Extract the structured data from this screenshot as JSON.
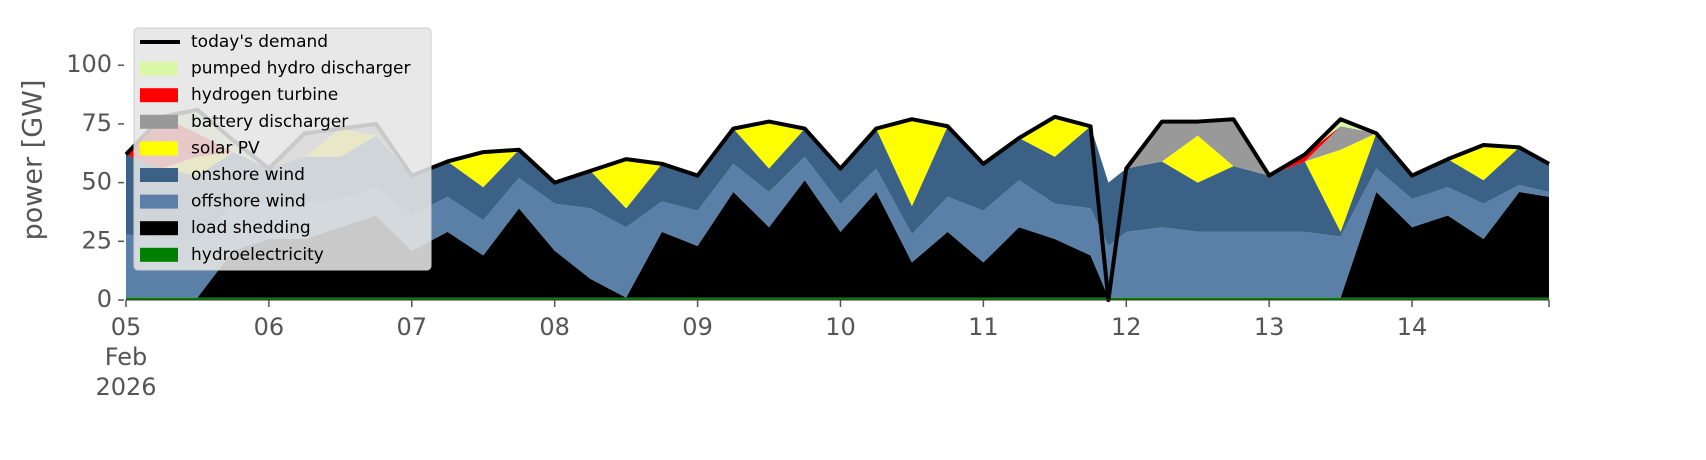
{
  "chart_data": {
    "type": "stacked-area",
    "y_label": "power [GW]",
    "x": [
      "2026-02-05T00:00",
      "2026-02-05T06:00",
      "2026-02-05T12:00",
      "2026-02-05T18:00",
      "2026-02-06T00:00",
      "2026-02-06T06:00",
      "2026-02-06T12:00",
      "2026-02-06T18:00",
      "2026-02-07T00:00",
      "2026-02-07T06:00",
      "2026-02-07T12:00",
      "2026-02-07T18:00",
      "2026-02-08T00:00",
      "2026-02-08T06:00",
      "2026-02-08T12:00",
      "2026-02-08T18:00",
      "2026-02-09T00:00",
      "2026-02-09T06:00",
      "2026-02-09T12:00",
      "2026-02-09T18:00",
      "2026-02-10T00:00",
      "2026-02-10T06:00",
      "2026-02-10T12:00",
      "2026-02-10T18:00",
      "2026-02-11T00:00",
      "2026-02-11T06:00",
      "2026-02-11T12:00",
      "2026-02-11T18:00",
      "2026-02-11T21:00",
      "2026-02-12T00:00",
      "2026-02-12T06:00",
      "2026-02-12T12:00",
      "2026-02-12T18:00",
      "2026-02-13T00:00",
      "2026-02-13T06:00",
      "2026-02-13T12:00",
      "2026-02-13T18:00",
      "2026-02-14T00:00",
      "2026-02-14T06:00",
      "2026-02-14T12:00",
      "2026-02-14T18:00",
      "2026-02-14T23:00"
    ],
    "xlim": [
      "2026-02-05T00:00",
      "2026-02-14T23:00"
    ],
    "xticks": [
      {
        "value": "2026-02-05T00:00",
        "label": "05\nFeb\n2026"
      },
      {
        "value": "2026-02-06T00:00",
        "label": "06"
      },
      {
        "value": "2026-02-07T00:00",
        "label": "07"
      },
      {
        "value": "2026-02-08T00:00",
        "label": "08"
      },
      {
        "value": "2026-02-09T00:00",
        "label": "09"
      },
      {
        "value": "2026-02-10T00:00",
        "label": "10"
      },
      {
        "value": "2026-02-11T00:00",
        "label": "11"
      },
      {
        "value": "2026-02-12T00:00",
        "label": "12"
      },
      {
        "value": "2026-02-13T00:00",
        "label": "13"
      },
      {
        "value": "2026-02-14T00:00",
        "label": "14"
      }
    ],
    "ylim": [
      0,
      115
    ],
    "yticks": [
      0,
      25,
      50,
      75,
      100
    ],
    "series": [
      {
        "name": "hydroelectricity",
        "color": "#008000",
        "values": [
          1,
          1,
          1,
          1,
          1,
          1,
          1,
          1,
          1,
          1,
          1,
          1,
          1,
          1,
          1,
          1,
          1,
          1,
          1,
          1,
          1,
          1,
          1,
          1,
          1,
          1,
          1,
          1,
          1,
          1,
          1,
          1,
          1,
          1,
          1,
          1,
          1,
          1,
          1,
          1,
          1,
          1
        ]
      },
      {
        "name": "load shedding",
        "color": "#000000",
        "values": [
          0,
          0,
          0,
          20,
          25,
          25,
          30,
          35,
          20,
          28,
          18,
          38,
          20,
          8,
          0,
          28,
          22,
          45,
          30,
          50,
          28,
          45,
          15,
          28,
          15,
          30,
          25,
          18,
          0,
          0,
          0,
          0,
          0,
          0,
          0,
          0,
          45,
          30,
          35,
          25,
          45,
          43
        ]
      },
      {
        "name": "offshore wind",
        "color": "#5b80a8",
        "values": [
          27,
          25,
          24,
          20,
          15,
          15,
          12,
          12,
          15,
          15,
          15,
          13,
          20,
          30,
          30,
          13,
          15,
          12,
          15,
          10,
          12,
          10,
          12,
          15,
          22,
          20,
          15,
          20,
          22,
          28,
          30,
          28,
          28,
          28,
          28,
          26,
          10,
          12,
          12,
          15,
          3,
          2
        ]
      },
      {
        "name": "onshore wind",
        "color": "#3b6186",
        "values": [
          34,
          30,
          28,
          22,
          15,
          20,
          18,
          22,
          17,
          15,
          14,
          12,
          9,
          16,
          8,
          16,
          15,
          15,
          10,
          12,
          15,
          17,
          12,
          30,
          20,
          18,
          20,
          35,
          27,
          27,
          28,
          21,
          28,
          24,
          30,
          2,
          15,
          10,
          12,
          10,
          16,
          12
        ]
      },
      {
        "name": "solar PV",
        "color": "#ffff00",
        "values": [
          0,
          0,
          8,
          0,
          0,
          0,
          12,
          0,
          0,
          0,
          15,
          0,
          0,
          0,
          21,
          0,
          0,
          0,
          20,
          0,
          0,
          0,
          37,
          0,
          0,
          0,
          17,
          0,
          0,
          0,
          0,
          20,
          0,
          0,
          0,
          35,
          0,
          0,
          0,
          15,
          0,
          0
        ]
      },
      {
        "name": "battery discharger",
        "color": "#999999",
        "values": [
          0,
          0,
          0,
          0,
          0,
          10,
          0,
          5,
          0,
          0,
          0,
          0,
          0,
          0,
          0,
          0,
          0,
          0,
          0,
          0,
          0,
          0,
          0,
          0,
          0,
          0,
          0,
          0,
          0,
          0,
          17,
          6,
          20,
          0,
          0,
          10,
          0,
          0,
          0,
          0,
          0,
          0
        ]
      },
      {
        "name": "hydrogen turbine",
        "color": "#ff0000",
        "values": [
          0,
          22,
          10,
          0,
          0,
          0,
          0,
          0,
          0,
          0,
          0,
          0,
          0,
          0,
          0,
          0,
          0,
          0,
          0,
          0,
          0,
          0,
          0,
          0,
          0,
          0,
          0,
          0,
          0,
          0,
          0,
          0,
          0,
          0,
          3,
          0,
          0,
          0,
          0,
          0,
          0,
          0
        ]
      },
      {
        "name": "pumped hydro discharger",
        "color": "#d9f7a6",
        "values": [
          0,
          0,
          10,
          5,
          0,
          0,
          0,
          0,
          0,
          0,
          0,
          0,
          0,
          0,
          0,
          0,
          0,
          0,
          0,
          0,
          0,
          0,
          0,
          0,
          0,
          0,
          0,
          0,
          0,
          0,
          0,
          0,
          0,
          0,
          0,
          3,
          0,
          0,
          0,
          0,
          0,
          0
        ]
      }
    ],
    "line": {
      "name": "today's demand",
      "color": "#000000",
      "values": [
        62,
        78,
        81,
        68,
        56,
        71,
        73,
        75,
        53,
        59,
        63,
        64,
        50,
        55,
        60,
        58,
        53,
        73,
        76,
        73,
        56,
        73,
        77,
        74,
        58,
        69,
        78,
        74,
        0,
        56,
        76,
        76,
        77,
        53,
        62,
        77,
        71,
        53,
        60,
        66,
        65,
        58
      ]
    }
  }
}
